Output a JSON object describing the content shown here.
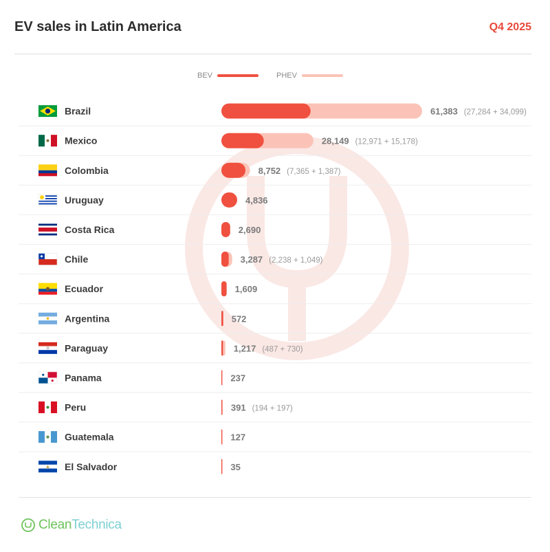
{
  "header": {
    "title": "EV sales in Latin America",
    "period": "Q4 2025"
  },
  "legend": {
    "bev_label": "BEV",
    "phev_label": "PHEV",
    "bev_color": "#f0503f",
    "phev_color": "#fbc3b7"
  },
  "brand": {
    "part1": "Clean",
    "part2": "Technica"
  },
  "chart_data": {
    "type": "bar",
    "orientation": "horizontal",
    "stacked": true,
    "title": "EV sales in Latin America",
    "subtitle": "Q4 2025",
    "categories": [
      "Brazil",
      "Mexico",
      "Colombia",
      "Uruguay",
      "Costa Rica",
      "Chile",
      "Ecuador",
      "Argentina",
      "Paraguay",
      "Panama",
      "Peru",
      "Guatemala",
      "El Salvador"
    ],
    "series": [
      {
        "name": "BEV",
        "color": "#f0503f",
        "values": [
          27284,
          12971,
          7365,
          4836,
          2690,
          2238,
          1609,
          572,
          487,
          237,
          194,
          127,
          35
        ]
      },
      {
        "name": "PHEV",
        "color": "#fbc3b7",
        "values": [
          34099,
          15178,
          1387,
          0,
          0,
          1049,
          0,
          0,
          730,
          0,
          197,
          0,
          0
        ]
      }
    ],
    "total_labels": [
      "61,383",
      "28,149",
      "8,752",
      "4,836",
      "2,690",
      "3,287",
      "1,609",
      "572",
      "1,217",
      "237",
      "391",
      "127",
      "35"
    ],
    "breakdown_labels": [
      "(27,284 + 34,099)",
      "(12,971 + 15,178)",
      "(7,365 + 1,387)",
      "",
      "",
      "(2,238 + 1,049)",
      "",
      "",
      "(487 + 730)",
      "",
      "(194 + 197)",
      "",
      ""
    ],
    "flags": [
      "brazil",
      "mexico",
      "colombia",
      "uruguay",
      "costa-rica",
      "chile",
      "ecuador",
      "argentina",
      "paraguay",
      "panama",
      "peru",
      "guatemala",
      "el-salvador"
    ],
    "xlim": [
      0,
      61383
    ],
    "legend_position": "top-center",
    "grid": false
  }
}
